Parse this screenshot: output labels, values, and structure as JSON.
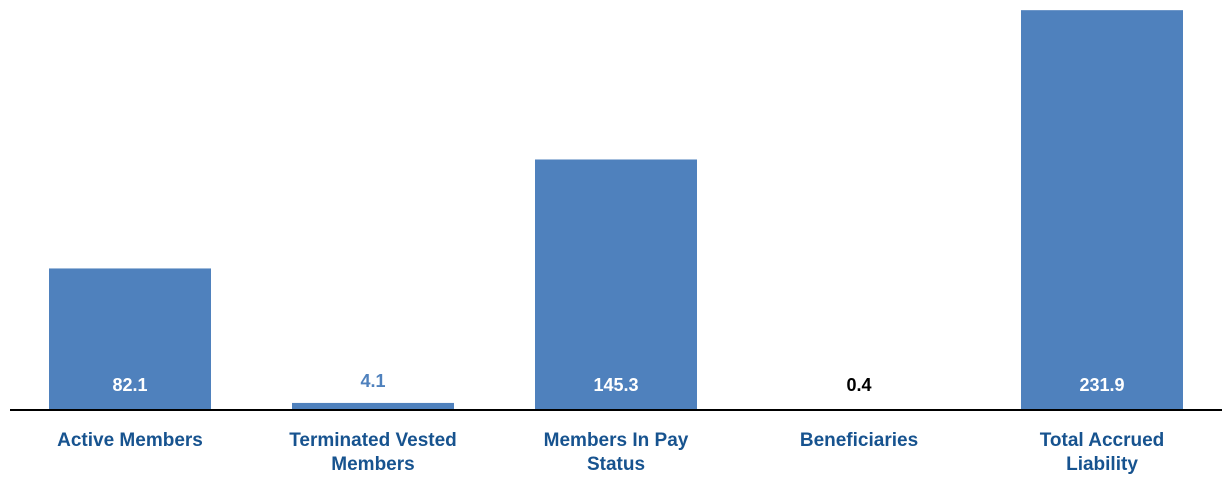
{
  "colors": {
    "bar": "#4f81bd",
    "category_text": "#17538f",
    "label_inside": "#ffffff",
    "label_above": "#4f81bd",
    "label_dark": "#000000",
    "axis": "#000000"
  },
  "chart_data": {
    "type": "bar",
    "title": "",
    "xlabel": "",
    "ylabel": "",
    "categories": [
      [
        "Active Members"
      ],
      [
        "Terminated Vested",
        "Members"
      ],
      [
        "Members In Pay",
        "Status"
      ],
      [
        "Beneficiaries"
      ],
      [
        "Total Accrued",
        "Liability"
      ]
    ],
    "values": [
      82.1,
      4.1,
      145.3,
      0.4,
      231.9
    ],
    "value_labels": [
      "82.1",
      "4.1",
      "145.3",
      "0.4",
      "231.9"
    ],
    "ylim": [
      0,
      232
    ],
    "grid": false,
    "legend": "none"
  }
}
